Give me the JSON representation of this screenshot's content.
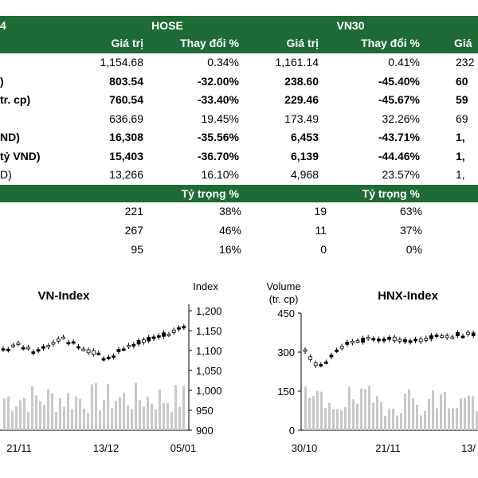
{
  "table": {
    "top_headers": {
      "left_fragment": "4",
      "hose": "HOSE",
      "vn30": "VN30"
    },
    "sub_headers": [
      "Giá trị",
      "Thay đổi %",
      "Giá trị",
      "Thay đổi %",
      "Giá"
    ],
    "rows": [
      {
        "label": "",
        "bold": false,
        "vals": [
          "1,154.68",
          "0.34%",
          "1,161.14",
          "0.41%",
          "232"
        ]
      },
      {
        "label": ")",
        "bold": true,
        "vals": [
          "803.54",
          "-32.00%",
          "238.60",
          "-45.40%",
          "60"
        ]
      },
      {
        "label": "tr. cp)",
        "bold": true,
        "vals": [
          "760.54",
          "-33.40%",
          "229.46",
          "-45.67%",
          "59"
        ]
      },
      {
        "label": "",
        "bold": false,
        "vals": [
          "636.69",
          "19.45%",
          "173.49",
          "32.26%",
          "69"
        ]
      },
      {
        "label": "ND)",
        "bold": true,
        "vals": [
          "16,308",
          "-35.56%",
          "6,453",
          "-43.71%",
          "1,"
        ]
      },
      {
        "label": "tỷ VND)",
        "bold": true,
        "vals": [
          "15,403",
          "-36.70%",
          "6,139",
          "-44.46%",
          "1,"
        ]
      },
      {
        "label": "D)",
        "bold": false,
        "vals": [
          "13,266",
          "16.10%",
          "4,968",
          "23.57%",
          "1,"
        ]
      }
    ],
    "weight_header": [
      "Tỷ trọng %",
      "Tỷ trọng %"
    ],
    "breadth_rows": [
      [
        "221",
        "38%",
        "19",
        "63%"
      ],
      [
        "267",
        "46%",
        "11",
        "37%"
      ],
      [
        "95",
        "16%",
        "0",
        "0%"
      ]
    ]
  },
  "charts": {
    "left_title": "VN-Index",
    "left_axis_label": "Index",
    "left_ticks": [
      "1,200",
      "1,150",
      "1,100",
      "1,050",
      "1,000",
      "950",
      "900"
    ],
    "left_dates": [
      "21/11",
      "13/12",
      "05/01"
    ],
    "right_title": "HNX-Index",
    "right_axis_label_1": "Volume",
    "right_axis_label_2": "(tr. cp)",
    "right_ticks": [
      "450",
      "300",
      "150",
      "0"
    ],
    "right_dates": [
      "30/10",
      "21/11",
      "13/"
    ]
  },
  "colors": {
    "green": "#1f6b35",
    "volume": "#c8c8c8"
  }
}
